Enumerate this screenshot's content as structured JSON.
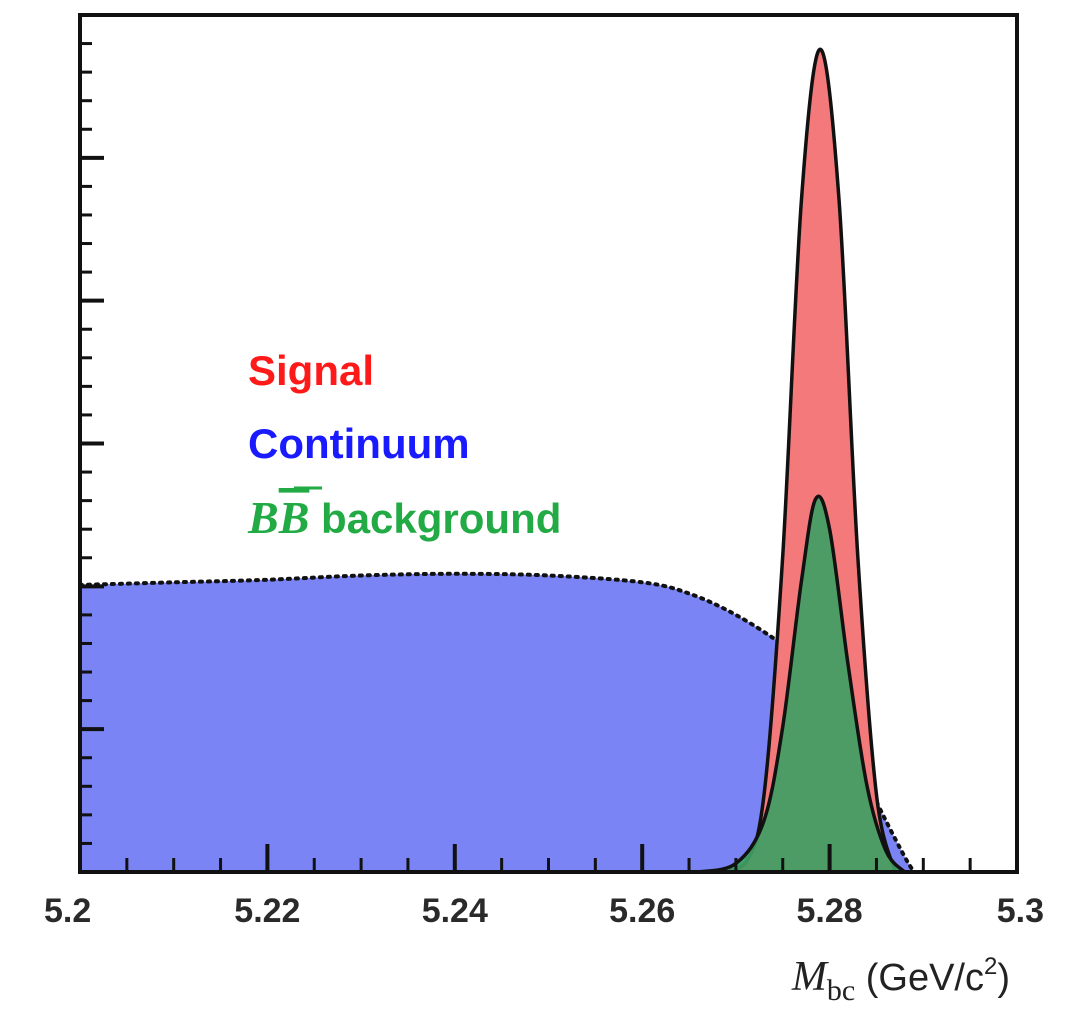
{
  "chart_data": {
    "type": "area",
    "xlabel": {
      "symbol": "M",
      "subscript": "bc",
      "unit": "(GeV/c",
      "superscript": "2",
      "unit_close": ")"
    },
    "xlim": [
      5.2,
      5.3
    ],
    "ylim": [
      0,
      100
    ],
    "x_ticks": [
      {
        "value": 5.2,
        "label": "5.2"
      },
      {
        "value": 5.22,
        "label": "5.22"
      },
      {
        "value": 5.24,
        "label": "5.24"
      },
      {
        "value": 5.26,
        "label": "5.26"
      },
      {
        "value": 5.28,
        "label": "5.28"
      },
      {
        "value": 5.3,
        "label": "5.3"
      }
    ],
    "y_axis_labels_shown": false,
    "grid": false,
    "legend_placement": "middle-left",
    "legend": [
      {
        "key": "signal",
        "label": "Signal",
        "color": "#ff1a1a"
      },
      {
        "key": "continuum",
        "label": "Continuum",
        "color": "#1a1aff"
      },
      {
        "key": "bbbar",
        "label": "B̅B̅ background",
        "prefix": "B",
        "prefix2": "B",
        "suffix": " background",
        "color": "#22aa44"
      }
    ],
    "series": [
      {
        "key": "continuum",
        "fill": "#7b84f4",
        "line": "dotted",
        "x": [
          5.2,
          5.21,
          5.22,
          5.23,
          5.24,
          5.25,
          5.26,
          5.265,
          5.27,
          5.275,
          5.278,
          5.28,
          5.282,
          5.284,
          5.286,
          5.288,
          5.289
        ],
        "y": [
          33.5,
          33.8,
          34.1,
          34.6,
          34.8,
          34.6,
          33.8,
          32.5,
          30.0,
          26.5,
          23.5,
          20.0,
          15.5,
          10.5,
          6.0,
          1.8,
          0.0
        ]
      },
      {
        "key": "signal",
        "fill": "#f4797b",
        "line": "solid",
        "x": [
          5.268,
          5.271,
          5.273,
          5.275,
          5.277,
          5.279,
          5.281,
          5.283,
          5.285,
          5.287
        ],
        "y": [
          0.0,
          1.0,
          9.0,
          37.0,
          78.5,
          96.0,
          78.5,
          37.0,
          9.0,
          0.0
        ]
      },
      {
        "key": "bbbar",
        "fill": "#3fa063",
        "line": "solid",
        "x": [
          5.266,
          5.27,
          5.273,
          5.275,
          5.277,
          5.2785,
          5.28,
          5.282,
          5.284,
          5.286,
          5.288
        ],
        "y": [
          0.0,
          1.0,
          6.0,
          17.0,
          34.0,
          43.5,
          40.0,
          24.0,
          10.0,
          2.5,
          0.0
        ]
      }
    ]
  }
}
